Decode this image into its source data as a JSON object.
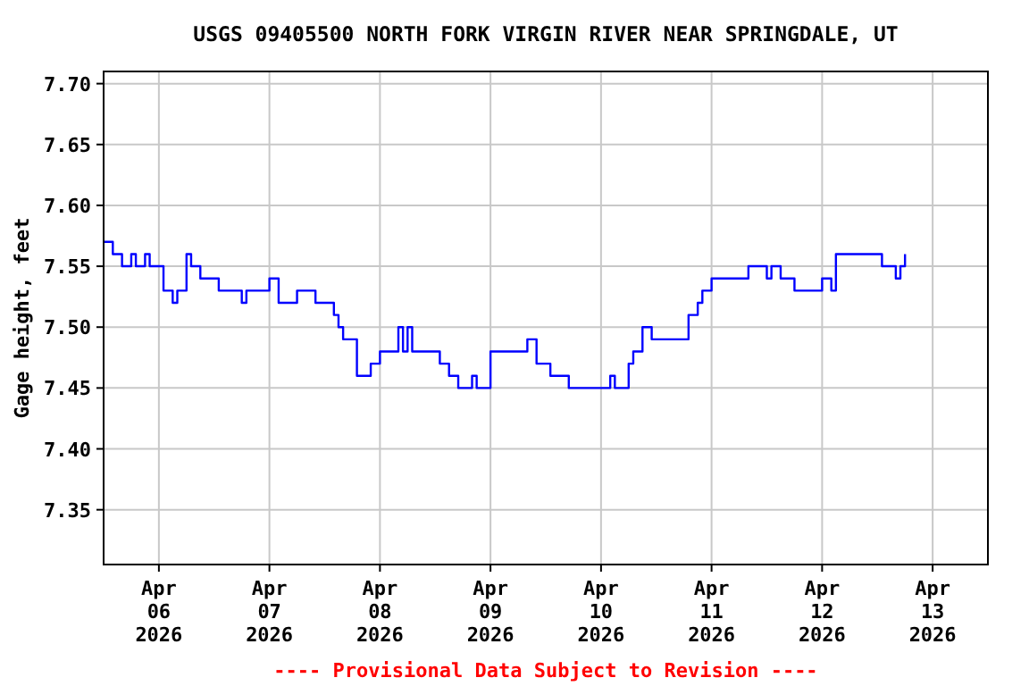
{
  "chart_data": {
    "type": "step",
    "title": "USGS 09405500 NORTH FORK VIRGIN RIVER NEAR SPRINGDALE, UT",
    "ylabel": "Gage height, feet",
    "annotations": [
      "---- Provisional Data Subject to Revision ----"
    ],
    "grid": true,
    "marker": "none",
    "line_style": "solid",
    "xlim": [
      "2026-04-05T12:00",
      "2026-04-13T12:00"
    ],
    "xticks": [
      {
        "value": "2026-04-06",
        "label": "Apr\n06\n2026"
      },
      {
        "value": "2026-04-07",
        "label": "Apr\n07\n2026"
      },
      {
        "value": "2026-04-08",
        "label": "Apr\n08\n2026"
      },
      {
        "value": "2026-04-09",
        "label": "Apr\n09\n2026"
      },
      {
        "value": "2026-04-10",
        "label": "Apr\n10\n2026"
      },
      {
        "value": "2026-04-11",
        "label": "Apr\n11\n2026"
      },
      {
        "value": "2026-04-12",
        "label": "Apr\n12\n2026"
      },
      {
        "value": "2026-04-13",
        "label": "Apr\n13\n2026"
      }
    ],
    "ylim": [
      7.305,
      7.71
    ],
    "yticks": [
      7.35,
      {
        "value": 7.4,
        "label": "7.40"
      },
      7.45,
      {
        "value": 7.5,
        "label": "7.50"
      },
      7.55,
      {
        "value": 7.6,
        "label": "7.60"
      },
      7.65,
      {
        "value": 7.7,
        "label": "7.70"
      }
    ],
    "series": [
      {
        "color": "#0000ff",
        "x": [
          "2026-04-05T12:00",
          "2026-04-05T14:00",
          "2026-04-05T16:00",
          "2026-04-05T18:00",
          "2026-04-05T19:00",
          "2026-04-05T21:00",
          "2026-04-05T22:00",
          "2026-04-06T01:00",
          "2026-04-06T03:00",
          "2026-04-06T04:00",
          "2026-04-06T06:00",
          "2026-04-06T07:00",
          "2026-04-06T09:00",
          "2026-04-06T13:00",
          "2026-04-06T18:00",
          "2026-04-06T19:00",
          "2026-04-07T00:00",
          "2026-04-07T02:00",
          "2026-04-07T06:00",
          "2026-04-07T10:00",
          "2026-04-07T14:00",
          "2026-04-07T15:00",
          "2026-04-07T16:00",
          "2026-04-07T19:00",
          "2026-04-07T22:00",
          "2026-04-08T00:00",
          "2026-04-08T04:00",
          "2026-04-08T05:00",
          "2026-04-08T06:00",
          "2026-04-08T07:00",
          "2026-04-08T13:00",
          "2026-04-08T15:00",
          "2026-04-08T17:00",
          "2026-04-08T20:00",
          "2026-04-08T21:00",
          "2026-04-09T00:00",
          "2026-04-09T08:00",
          "2026-04-09T10:00",
          "2026-04-09T13:00",
          "2026-04-09T17:00",
          "2026-04-10T02:00",
          "2026-04-10T03:00",
          "2026-04-10T06:00",
          "2026-04-10T07:00",
          "2026-04-10T09:00",
          "2026-04-10T11:00",
          "2026-04-10T13:00",
          "2026-04-10T19:00",
          "2026-04-10T21:00",
          "2026-04-10T22:00",
          "2026-04-11T00:00",
          "2026-04-11T08:00",
          "2026-04-11T12:00",
          "2026-04-11T13:00",
          "2026-04-11T15:00",
          "2026-04-11T18:00",
          "2026-04-12T00:00",
          "2026-04-12T02:00",
          "2026-04-12T03:00",
          "2026-04-12T13:00",
          "2026-04-12T16:00",
          "2026-04-12T17:00",
          "2026-04-12T18:00"
        ],
        "values": [
          7.57,
          7.56,
          7.55,
          7.56,
          7.55,
          7.56,
          7.55,
          7.53,
          7.52,
          7.53,
          7.56,
          7.55,
          7.54,
          7.53,
          7.52,
          7.53,
          7.54,
          7.52,
          7.53,
          7.52,
          7.51,
          7.5,
          7.49,
          7.46,
          7.47,
          7.48,
          7.5,
          7.48,
          7.5,
          7.48,
          7.47,
          7.46,
          7.45,
          7.46,
          7.45,
          7.48,
          7.49,
          7.47,
          7.46,
          7.45,
          7.46,
          7.45,
          7.47,
          7.48,
          7.5,
          7.49,
          7.49,
          7.51,
          7.52,
          7.53,
          7.54,
          7.55,
          7.54,
          7.55,
          7.54,
          7.53,
          7.54,
          7.53,
          7.56,
          7.55,
          7.54,
          7.55,
          7.56
        ]
      }
    ]
  }
}
